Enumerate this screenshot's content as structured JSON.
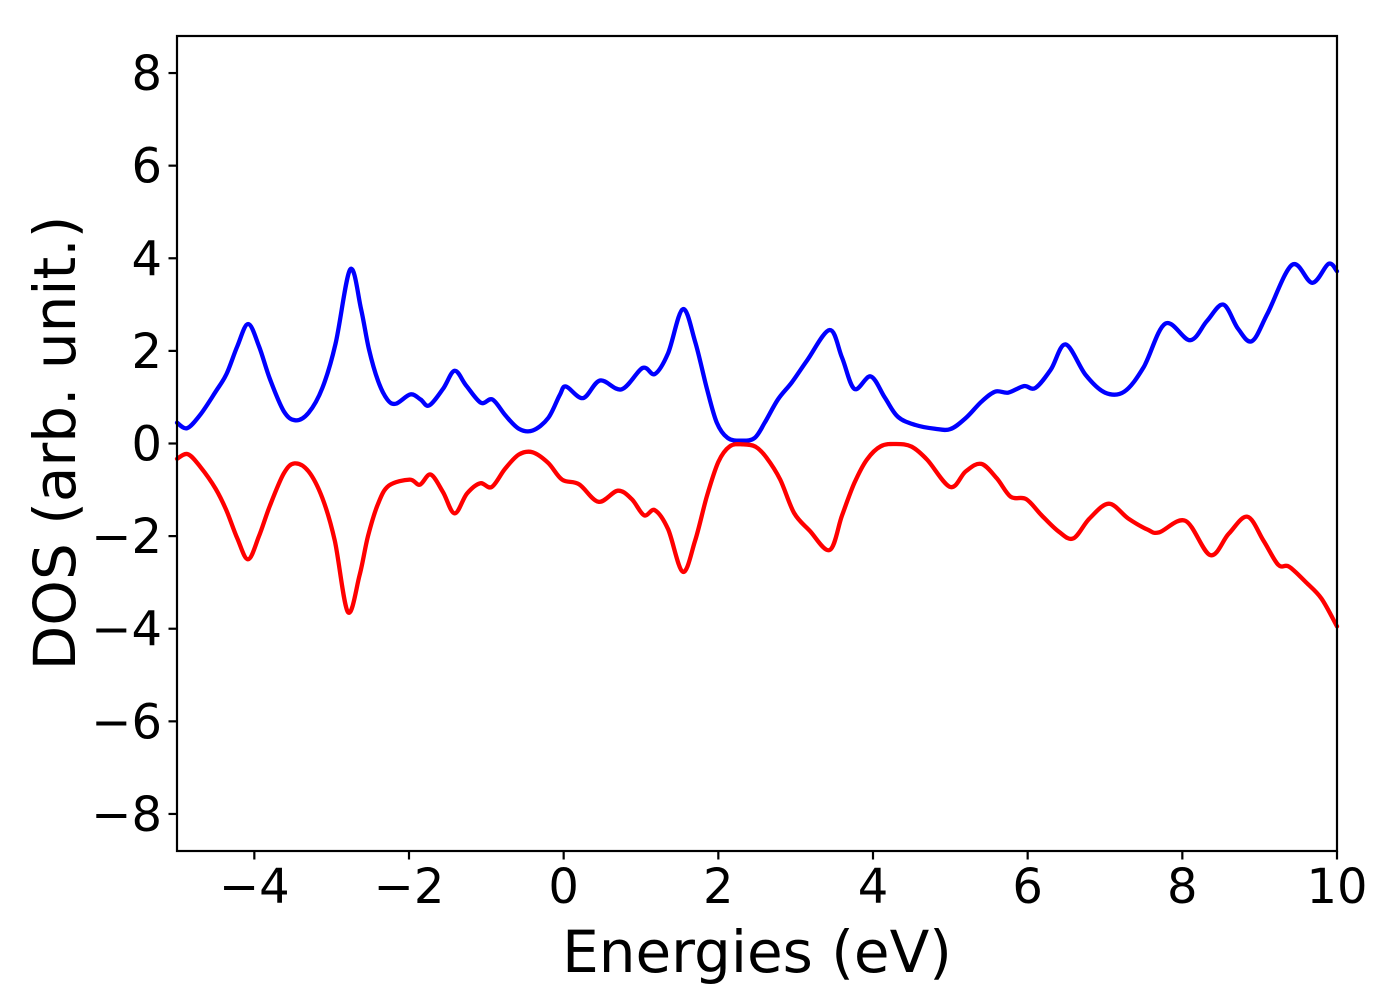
{
  "figure": {
    "background": "#ffffff",
    "frame_color": "#000000"
  },
  "chart_data": {
    "type": "line",
    "title": "",
    "xlabel": "Energies (eV)",
    "ylabel": "DOS (arb. unit.)",
    "xlim": [
      -5,
      10
    ],
    "ylim": [
      -8.8,
      8.8
    ],
    "grid": false,
    "legend_position": "none",
    "x_ticks": [
      -4,
      -2,
      0,
      2,
      4,
      6,
      8,
      10
    ],
    "x_tick_labels": [
      "−4",
      "−2",
      "0",
      "2",
      "4",
      "6",
      "8",
      "10"
    ],
    "y_ticks": [
      -8,
      -6,
      -4,
      -2,
      0,
      2,
      4,
      6,
      8
    ],
    "y_tick_labels": [
      "−8",
      "−6",
      "−4",
      "−2",
      "0",
      "2",
      "4",
      "6",
      "8"
    ],
    "series": [
      {
        "name": "blue curve (spin-up DOS)",
        "color": "#0000ff",
        "line_width": 4.3,
        "points": [
          [
            -5.0,
            0.45
          ],
          [
            -4.87,
            0.33
          ],
          [
            -4.7,
            0.62
          ],
          [
            -4.5,
            1.12
          ],
          [
            -4.36,
            1.5
          ],
          [
            -4.22,
            2.1
          ],
          [
            -4.08,
            2.58
          ],
          [
            -3.94,
            2.1
          ],
          [
            -3.8,
            1.4
          ],
          [
            -3.62,
            0.7
          ],
          [
            -3.47,
            0.5
          ],
          [
            -3.3,
            0.66
          ],
          [
            -3.12,
            1.2
          ],
          [
            -2.95,
            2.15
          ],
          [
            -2.76,
            3.76
          ],
          [
            -2.62,
            2.9
          ],
          [
            -2.52,
            2.05
          ],
          [
            -2.4,
            1.35
          ],
          [
            -2.28,
            0.95
          ],
          [
            -2.17,
            0.86
          ],
          [
            -1.98,
            1.06
          ],
          [
            -1.85,
            0.95
          ],
          [
            -1.74,
            0.82
          ],
          [
            -1.56,
            1.18
          ],
          [
            -1.41,
            1.57
          ],
          [
            -1.26,
            1.25
          ],
          [
            -1.07,
            0.88
          ],
          [
            -0.92,
            0.95
          ],
          [
            -0.75,
            0.6
          ],
          [
            -0.58,
            0.32
          ],
          [
            -0.4,
            0.28
          ],
          [
            -0.2,
            0.55
          ],
          [
            -0.05,
            1.05
          ],
          [
            0.03,
            1.23
          ],
          [
            0.25,
            0.98
          ],
          [
            0.47,
            1.36
          ],
          [
            0.75,
            1.17
          ],
          [
            1.02,
            1.63
          ],
          [
            1.18,
            1.5
          ],
          [
            1.35,
            1.95
          ],
          [
            1.54,
            2.9
          ],
          [
            1.7,
            2.2
          ],
          [
            1.85,
            1.2
          ],
          [
            1.98,
            0.45
          ],
          [
            2.12,
            0.12
          ],
          [
            2.3,
            0.06
          ],
          [
            2.47,
            0.12
          ],
          [
            2.6,
            0.45
          ],
          [
            2.77,
            0.95
          ],
          [
            2.95,
            1.32
          ],
          [
            3.15,
            1.8
          ],
          [
            3.44,
            2.45
          ],
          [
            3.6,
            1.85
          ],
          [
            3.76,
            1.18
          ],
          [
            3.97,
            1.45
          ],
          [
            4.15,
            1.0
          ],
          [
            4.32,
            0.58
          ],
          [
            4.55,
            0.4
          ],
          [
            4.8,
            0.32
          ],
          [
            5.0,
            0.31
          ],
          [
            5.2,
            0.55
          ],
          [
            5.4,
            0.9
          ],
          [
            5.58,
            1.12
          ],
          [
            5.75,
            1.1
          ],
          [
            5.95,
            1.24
          ],
          [
            6.1,
            1.2
          ],
          [
            6.3,
            1.6
          ],
          [
            6.49,
            2.14
          ],
          [
            6.75,
            1.48
          ],
          [
            7.0,
            1.1
          ],
          [
            7.25,
            1.12
          ],
          [
            7.5,
            1.65
          ],
          [
            7.78,
            2.59
          ],
          [
            8.1,
            2.23
          ],
          [
            8.32,
            2.65
          ],
          [
            8.53,
            3.0
          ],
          [
            8.72,
            2.48
          ],
          [
            8.9,
            2.21
          ],
          [
            9.1,
            2.8
          ],
          [
            9.42,
            3.86
          ],
          [
            9.68,
            3.47
          ],
          [
            9.89,
            3.88
          ],
          [
            10.0,
            3.72
          ]
        ]
      },
      {
        "name": "red curve (spin-down DOS)",
        "color": "#ff0000",
        "line_width": 4.3,
        "points": [
          [
            -5.0,
            -0.33
          ],
          [
            -4.86,
            -0.23
          ],
          [
            -4.7,
            -0.5
          ],
          [
            -4.5,
            -0.98
          ],
          [
            -4.36,
            -1.45
          ],
          [
            -4.22,
            -2.05
          ],
          [
            -4.08,
            -2.5
          ],
          [
            -3.94,
            -2.0
          ],
          [
            -3.8,
            -1.35
          ],
          [
            -3.62,
            -0.65
          ],
          [
            -3.48,
            -0.43
          ],
          [
            -3.3,
            -0.6
          ],
          [
            -3.12,
            -1.18
          ],
          [
            -2.96,
            -2.1
          ],
          [
            -2.79,
            -3.64
          ],
          [
            -2.64,
            -2.85
          ],
          [
            -2.53,
            -2.0
          ],
          [
            -2.4,
            -1.3
          ],
          [
            -2.26,
            -0.91
          ],
          [
            -1.99,
            -0.78
          ],
          [
            -1.86,
            -0.89
          ],
          [
            -1.72,
            -0.67
          ],
          [
            -1.56,
            -1.05
          ],
          [
            -1.41,
            -1.51
          ],
          [
            -1.25,
            -1.08
          ],
          [
            -1.08,
            -0.86
          ],
          [
            -0.93,
            -0.94
          ],
          [
            -0.76,
            -0.55
          ],
          [
            -0.58,
            -0.24
          ],
          [
            -0.4,
            -0.19
          ],
          [
            -0.2,
            -0.42
          ],
          [
            -0.02,
            -0.78
          ],
          [
            0.2,
            -0.88
          ],
          [
            0.45,
            -1.26
          ],
          [
            0.7,
            -1.02
          ],
          [
            0.88,
            -1.2
          ],
          [
            1.04,
            -1.55
          ],
          [
            1.18,
            -1.44
          ],
          [
            1.35,
            -1.85
          ],
          [
            1.54,
            -2.77
          ],
          [
            1.7,
            -2.1
          ],
          [
            1.85,
            -1.15
          ],
          [
            2.0,
            -0.4
          ],
          [
            2.15,
            -0.06
          ],
          [
            2.32,
            -0.02
          ],
          [
            2.48,
            -0.07
          ],
          [
            2.62,
            -0.3
          ],
          [
            2.8,
            -0.78
          ],
          [
            2.98,
            -1.5
          ],
          [
            3.18,
            -1.88
          ],
          [
            3.44,
            -2.3
          ],
          [
            3.6,
            -1.55
          ],
          [
            3.76,
            -0.85
          ],
          [
            3.92,
            -0.35
          ],
          [
            4.1,
            -0.06
          ],
          [
            4.3,
            -0.01
          ],
          [
            4.5,
            -0.07
          ],
          [
            4.7,
            -0.35
          ],
          [
            5.0,
            -0.94
          ],
          [
            5.2,
            -0.6
          ],
          [
            5.4,
            -0.44
          ],
          [
            5.6,
            -0.75
          ],
          [
            5.78,
            -1.15
          ],
          [
            5.98,
            -1.2
          ],
          [
            6.18,
            -1.55
          ],
          [
            6.4,
            -1.9
          ],
          [
            6.59,
            -2.05
          ],
          [
            6.8,
            -1.62
          ],
          [
            7.05,
            -1.3
          ],
          [
            7.3,
            -1.62
          ],
          [
            7.55,
            -1.86
          ],
          [
            7.7,
            -1.92
          ],
          [
            8.04,
            -1.67
          ],
          [
            8.36,
            -2.41
          ],
          [
            8.6,
            -1.95
          ],
          [
            8.84,
            -1.58
          ],
          [
            9.05,
            -2.1
          ],
          [
            9.24,
            -2.62
          ],
          [
            9.38,
            -2.66
          ],
          [
            9.6,
            -3.0
          ],
          [
            9.8,
            -3.35
          ],
          [
            10.0,
            -3.95
          ]
        ]
      }
    ]
  }
}
